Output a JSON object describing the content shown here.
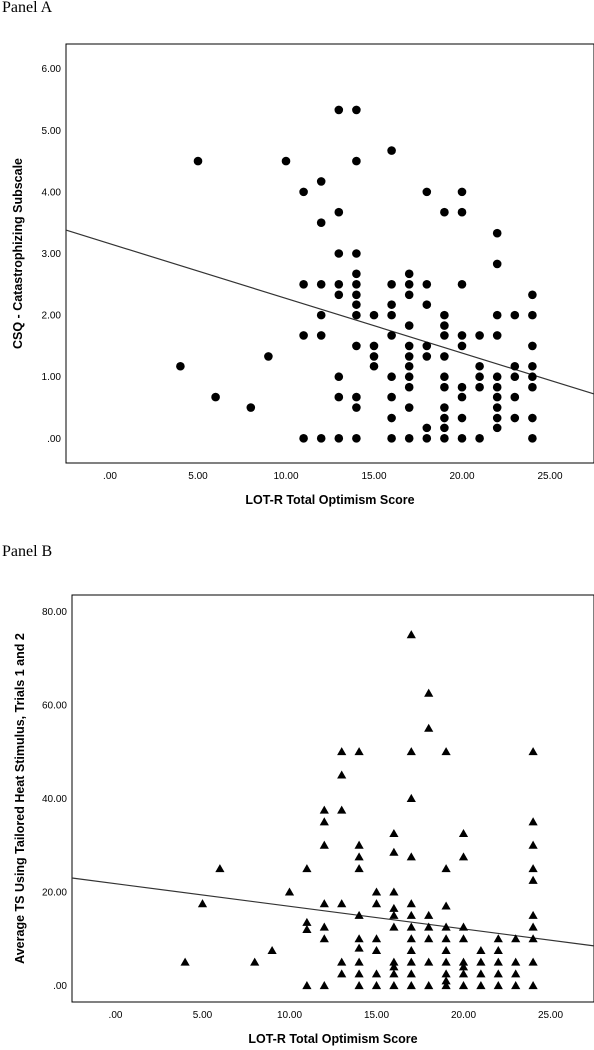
{
  "panels": [
    {
      "label": "Panel A"
    },
    {
      "label": "Panel B"
    }
  ],
  "chart_data": [
    {
      "type": "scatter",
      "marker": "circle",
      "xlabel": "LOT-R Total Optimism Score",
      "ylabel": "CSQ - Catastrophizing Subscale",
      "xlim": [
        -2.5,
        27.5
      ],
      "ylim": [
        -0.4,
        6.4
      ],
      "x_ticks": [
        ".00",
        "5.00",
        "10.00",
        "15.00",
        "20.00",
        "25.00"
      ],
      "y_ticks": [
        ".00",
        "1.00",
        "2.00",
        "3.00",
        "4.00",
        "5.00",
        "6.00"
      ],
      "x_tick_values": [
        0,
        5,
        10,
        15,
        20,
        25
      ],
      "y_tick_values": [
        0,
        1,
        2,
        3,
        4,
        5,
        6
      ],
      "fit_line": {
        "x": [
          -2.5,
          27.5
        ],
        "y": [
          3.38,
          0.72
        ]
      },
      "points": [
        [
          4,
          1.17
        ],
        [
          5,
          4.5
        ],
        [
          6,
          0.67
        ],
        [
          8,
          0.5
        ],
        [
          9,
          1.33
        ],
        [
          10,
          4.5
        ],
        [
          11,
          4.0
        ],
        [
          11,
          2.5
        ],
        [
          11,
          1.67
        ],
        [
          11,
          0.0
        ],
        [
          12,
          4.17
        ],
        [
          12,
          3.5
        ],
        [
          12,
          2.5
        ],
        [
          12,
          2.0
        ],
        [
          12,
          1.67
        ],
        [
          12,
          0.0
        ],
        [
          13,
          5.33
        ],
        [
          13,
          3.67
        ],
        [
          13,
          3.0
        ],
        [
          13,
          2.5
        ],
        [
          13,
          2.33
        ],
        [
          13,
          1.0
        ],
        [
          13,
          0.67
        ],
        [
          13,
          0.0
        ],
        [
          14,
          5.33
        ],
        [
          14,
          4.5
        ],
        [
          14,
          3.0
        ],
        [
          14,
          2.67
        ],
        [
          14,
          2.5
        ],
        [
          14,
          2.33
        ],
        [
          14,
          2.17
        ],
        [
          14,
          2.0
        ],
        [
          14,
          1.5
        ],
        [
          14,
          0.67
        ],
        [
          14,
          0.5
        ],
        [
          14,
          0.0
        ],
        [
          15,
          2.0
        ],
        [
          15,
          1.5
        ],
        [
          15,
          1.33
        ],
        [
          15,
          1.17
        ],
        [
          16,
          4.67
        ],
        [
          16,
          2.5
        ],
        [
          16,
          2.17
        ],
        [
          16,
          2.0
        ],
        [
          16,
          1.67
        ],
        [
          16,
          1.0
        ],
        [
          16,
          0.67
        ],
        [
          16,
          0.33
        ],
        [
          16,
          0.0
        ],
        [
          17,
          2.67
        ],
        [
          17,
          2.5
        ],
        [
          17,
          2.33
        ],
        [
          17,
          1.83
        ],
        [
          17,
          1.5
        ],
        [
          17,
          1.33
        ],
        [
          17,
          1.17
        ],
        [
          17,
          1.0
        ],
        [
          17,
          0.83
        ],
        [
          17,
          0.5
        ],
        [
          17,
          0.0
        ],
        [
          18,
          4.0
        ],
        [
          18,
          2.5
        ],
        [
          18,
          2.17
        ],
        [
          18,
          1.5
        ],
        [
          18,
          1.33
        ],
        [
          18,
          0.17
        ],
        [
          18,
          0.0
        ],
        [
          19,
          3.67
        ],
        [
          19,
          2.0
        ],
        [
          19,
          1.83
        ],
        [
          19,
          1.67
        ],
        [
          19,
          1.33
        ],
        [
          19,
          1.0
        ],
        [
          19,
          0.83
        ],
        [
          19,
          0.5
        ],
        [
          19,
          0.33
        ],
        [
          19,
          0.17
        ],
        [
          19,
          0.0
        ],
        [
          20,
          4.0
        ],
        [
          20,
          3.67
        ],
        [
          20,
          2.5
        ],
        [
          20,
          1.67
        ],
        [
          20,
          1.5
        ],
        [
          20,
          0.83
        ],
        [
          20,
          0.67
        ],
        [
          20,
          0.33
        ],
        [
          20,
          0.0
        ],
        [
          21,
          1.67
        ],
        [
          21,
          1.17
        ],
        [
          21,
          1.0
        ],
        [
          21,
          0.83
        ],
        [
          21,
          0.0
        ],
        [
          22,
          3.33
        ],
        [
          22,
          2.83
        ],
        [
          22,
          2.0
        ],
        [
          22,
          1.67
        ],
        [
          22,
          1.0
        ],
        [
          22,
          0.83
        ],
        [
          22,
          0.67
        ],
        [
          22,
          0.5
        ],
        [
          22,
          0.33
        ],
        [
          22,
          0.17
        ],
        [
          23,
          2.0
        ],
        [
          23,
          1.17
        ],
        [
          23,
          1.0
        ],
        [
          23,
          0.67
        ],
        [
          23,
          0.33
        ],
        [
          24,
          2.33
        ],
        [
          24,
          2.0
        ],
        [
          24,
          1.5
        ],
        [
          24,
          1.17
        ],
        [
          24,
          1.0
        ],
        [
          24,
          0.83
        ],
        [
          24,
          0.33
        ],
        [
          24,
          0.0
        ]
      ]
    },
    {
      "type": "scatter",
      "marker": "triangle",
      "xlabel": "LOT-R Total Optimism Score",
      "ylabel": "Average TS Using Tailored Heat Stimulus, Trials 1 and 2",
      "xlim": [
        -2.5,
        27.5
      ],
      "ylim": [
        -3.5,
        83.5
      ],
      "x_ticks": [
        ".00",
        "5.00",
        "10.00",
        "15.00",
        "20.00",
        "25.00"
      ],
      "y_ticks": [
        ".00",
        "20.00",
        "40.00",
        "60.00",
        "80.00"
      ],
      "x_tick_values": [
        0,
        5,
        10,
        15,
        20,
        25
      ],
      "y_tick_values": [
        0,
        20,
        40,
        60,
        80
      ],
      "fit_line": {
        "x": [
          -2.5,
          27.5
        ],
        "y": [
          23.0,
          8.5
        ]
      },
      "points": [
        [
          4,
          5
        ],
        [
          5,
          17.5
        ],
        [
          6,
          25
        ],
        [
          8,
          5
        ],
        [
          9,
          7.5
        ],
        [
          10,
          20
        ],
        [
          11,
          25
        ],
        [
          11,
          13.5
        ],
        [
          11,
          12
        ],
        [
          11,
          0
        ],
        [
          12,
          37.5
        ],
        [
          12,
          35
        ],
        [
          12,
          30
        ],
        [
          12,
          17.5
        ],
        [
          12,
          12.5
        ],
        [
          12,
          10
        ],
        [
          12,
          0
        ],
        [
          13,
          50
        ],
        [
          13,
          45
        ],
        [
          13,
          37.5
        ],
        [
          13,
          17.5
        ],
        [
          13,
          5
        ],
        [
          13,
          2.5
        ],
        [
          14,
          50
        ],
        [
          14,
          30
        ],
        [
          14,
          27.5
        ],
        [
          14,
          25
        ],
        [
          14,
          15
        ],
        [
          14,
          10
        ],
        [
          14,
          8
        ],
        [
          14,
          5
        ],
        [
          14,
          2.5
        ],
        [
          14,
          0
        ],
        [
          15,
          20
        ],
        [
          15,
          17.5
        ],
        [
          15,
          10
        ],
        [
          15,
          7.5
        ],
        [
          15,
          2.5
        ],
        [
          15,
          0
        ],
        [
          16,
          32.5
        ],
        [
          16,
          28.5
        ],
        [
          16,
          20
        ],
        [
          16,
          16.5
        ],
        [
          16,
          15
        ],
        [
          16,
          12.5
        ],
        [
          16,
          5
        ],
        [
          16,
          4
        ],
        [
          16,
          2.5
        ],
        [
          16,
          0
        ],
        [
          17,
          75
        ],
        [
          17,
          50
        ],
        [
          17,
          40
        ],
        [
          17,
          27.5
        ],
        [
          17,
          17.5
        ],
        [
          17,
          15
        ],
        [
          17,
          12.5
        ],
        [
          17,
          10
        ],
        [
          17,
          7.5
        ],
        [
          17,
          5
        ],
        [
          17,
          2.5
        ],
        [
          17,
          0
        ],
        [
          18,
          62.5
        ],
        [
          18,
          55
        ],
        [
          18,
          15
        ],
        [
          18,
          12.5
        ],
        [
          18,
          10
        ],
        [
          18,
          5
        ],
        [
          18,
          0
        ],
        [
          19,
          50
        ],
        [
          19,
          25
        ],
        [
          19,
          17
        ],
        [
          19,
          12.5
        ],
        [
          19,
          10
        ],
        [
          19,
          7.5
        ],
        [
          19,
          5
        ],
        [
          19,
          2.5
        ],
        [
          19,
          1
        ],
        [
          19,
          0
        ],
        [
          20,
          32.5
        ],
        [
          20,
          27.5
        ],
        [
          20,
          12.5
        ],
        [
          20,
          10
        ],
        [
          20,
          5
        ],
        [
          20,
          4
        ],
        [
          20,
          2.5
        ],
        [
          20,
          0
        ],
        [
          21,
          7.5
        ],
        [
          21,
          5
        ],
        [
          21,
          2.5
        ],
        [
          21,
          0
        ],
        [
          22,
          10
        ],
        [
          22,
          7.5
        ],
        [
          22,
          5
        ],
        [
          22,
          2.5
        ],
        [
          22,
          0
        ],
        [
          23,
          10
        ],
        [
          23,
          5
        ],
        [
          23,
          2.5
        ],
        [
          23,
          0
        ],
        [
          24,
          50
        ],
        [
          24,
          35
        ],
        [
          24,
          30
        ],
        [
          24,
          25
        ],
        [
          24,
          22.5
        ],
        [
          24,
          15
        ],
        [
          24,
          12.5
        ],
        [
          24,
          10
        ],
        [
          24,
          5
        ],
        [
          24,
          0
        ]
      ]
    }
  ]
}
